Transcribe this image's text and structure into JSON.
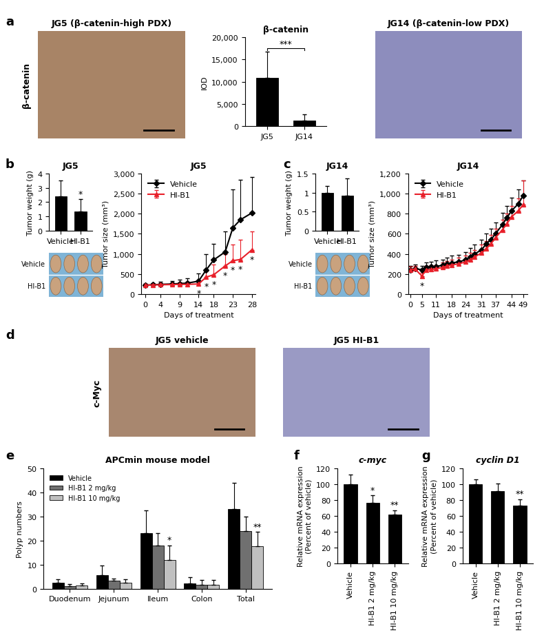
{
  "panels": [
    "a",
    "b",
    "c",
    "d",
    "e",
    "f",
    "g"
  ],
  "images": [
    {
      "title": "JG5 (β-catenin-high PDX)",
      "side_label": "β-catenin",
      "color": "#a88466"
    },
    {
      "title": "JG14 (β-catenin-low PDX)",
      "color": "#8d8dbd"
    },
    {
      "row_labels": [
        "Vehicle",
        "HI-B1"
      ],
      "color": "#7fb4d6"
    },
    {
      "row_labels": [
        "Vehicle",
        "HI-B1"
      ],
      "color": "#7fb4d6"
    },
    {
      "title": "JG5 vehicle",
      "side_label": "c-Myc",
      "color": "#a8876f"
    },
    {
      "title": "JG5 HI-B1",
      "color": "#9a9ac4"
    }
  ],
  "chart_data": [
    {
      "type": "bar",
      "title": "β-catenin",
      "y_label": "IOD",
      "categories": [
        "JG5",
        "JG14"
      ],
      "values": [
        10800,
        1200
      ],
      "errors": [
        6000,
        1500
      ],
      "color": "#000000",
      "annotations": [
        "***"
      ],
      "ylim": [
        0,
        20000
      ],
      "yticks": [
        0,
        {
          "value": 5000,
          "label": "5,000"
        },
        {
          "value": 10000,
          "label": "10,000"
        },
        {
          "value": 15000,
          "label": "15,000"
        },
        {
          "value": 20000,
          "label": "20,000"
        }
      ]
    },
    {
      "type": "bar",
      "title": "JG5",
      "y_label": "Tumor weight (g)",
      "categories": [
        "Vehicle",
        "HI-B1"
      ],
      "values": [
        2.4,
        1.35
      ],
      "errors": [
        1.1,
        0.85
      ],
      "significance": [
        null,
        "*"
      ],
      "color": "#000000",
      "ylim": [
        0,
        4
      ],
      "yticks": [
        0,
        1,
        2,
        3,
        4
      ]
    },
    {
      "type": "line",
      "title": "JG5",
      "x_label": "Days of treatment",
      "y_label": "Tumor size (mm³)",
      "x": [
        0,
        2,
        4,
        7,
        9,
        11,
        14,
        16,
        18,
        21,
        23,
        25,
        28
      ],
      "series": [
        {
          "name": "Vehicle",
          "color": "#000000",
          "marker": "diamond",
          "values": [
            220,
            230,
            240,
            250,
            260,
            270,
            320,
            600,
            850,
            1050,
            1650,
            1850,
            2020
          ],
          "errors": [
            30,
            40,
            60,
            80,
            100,
            120,
            200,
            400,
            400,
            500,
            950,
            1000,
            900
          ]
        },
        {
          "name": "HI-B1",
          "color": "#e8202a",
          "marker": "triangle",
          "values": [
            220,
            225,
            230,
            235,
            240,
            240,
            250,
            420,
            480,
            700,
            830,
            860,
            1100
          ],
          "errors": [
            30,
            30,
            40,
            40,
            50,
            60,
            80,
            150,
            250,
            300,
            400,
            500,
            450
          ],
          "significance": [
            null,
            null,
            null,
            null,
            null,
            null,
            "*",
            "*",
            "*",
            "*",
            "*",
            "*",
            "*"
          ]
        }
      ],
      "legend": "upper left",
      "xlim": [
        -1,
        29
      ],
      "xticks": [
        0,
        4,
        9,
        14,
        18,
        23,
        28
      ],
      "ylim": [
        0,
        3000
      ],
      "yticks": [
        0,
        500,
        {
          "value": 1000,
          "label": "1,000"
        },
        {
          "value": 1500,
          "label": "1,500"
        },
        {
          "value": 2000,
          "label": "2,000"
        },
        {
          "value": 2500,
          "label": "2,500"
        },
        {
          "value": 3000,
          "label": "3,000"
        }
      ]
    },
    {
      "type": "bar",
      "title": "JG14",
      "y_label": "Tumor weight (g)",
      "categories": [
        "Vehicle",
        "HI-B1"
      ],
      "values": [
        1.0,
        0.92
      ],
      "errors": [
        0.18,
        0.45
      ],
      "color": "#000000",
      "ylim": [
        0,
        1.5
      ],
      "yticks": [
        0,
        0.5,
        1,
        1.5
      ]
    },
    {
      "type": "line",
      "title": "JG14",
      "x_label": "Days of treatment",
      "y_label": "Tumor size (mm³)",
      "x": [
        0,
        2,
        5,
        7,
        9,
        11,
        14,
        16,
        18,
        21,
        24,
        26,
        28,
        31,
        33,
        35,
        37,
        40,
        42,
        44,
        47,
        49
      ],
      "series": [
        {
          "name": "Vehicle",
          "color": "#000000",
          "marker": "diamond",
          "values": [
            240,
            255,
            240,
            265,
            270,
            275,
            285,
            300,
            310,
            320,
            340,
            370,
            400,
            440,
            500,
            540,
            600,
            690,
            760,
            830,
            900,
            980
          ],
          "errors": [
            40,
            40,
            40,
            50,
            50,
            60,
            60,
            60,
            70,
            70,
            80,
            90,
            90,
            100,
            100,
            110,
            110,
            120,
            120,
            130,
            140,
            150
          ]
        },
        {
          "name": "HI-B1",
          "color": "#e8202a",
          "marker": "triangle",
          "values": [
            240,
            250,
            180,
            240,
            245,
            250,
            265,
            280,
            290,
            300,
            320,
            340,
            370,
            410,
            450,
            500,
            560,
            640,
            700,
            770,
            830,
            890
          ],
          "errors": [
            30,
            30,
            30,
            40,
            40,
            40,
            50,
            50,
            50,
            60,
            60,
            70,
            70,
            80,
            80,
            90,
            90,
            100,
            100,
            110,
            120,
            240
          ],
          "significance": [
            null,
            null,
            "*",
            null,
            null,
            null,
            null,
            null,
            null,
            null,
            null,
            null,
            null,
            null,
            null,
            null,
            null,
            null,
            null,
            null,
            null,
            null
          ]
        }
      ],
      "legend": "upper left",
      "xlim": [
        -1,
        51
      ],
      "xticks": [
        0,
        5,
        11,
        18,
        24,
        31,
        37,
        44,
        49
      ],
      "ylim": [
        0,
        1200
      ],
      "yticks": [
        0,
        200,
        400,
        600,
        800,
        {
          "value": 1000,
          "label": "1,000"
        },
        {
          "value": 1200,
          "label": "1,200"
        }
      ]
    },
    {
      "type": "bar",
      "title": "APCmin mouse model",
      "y_label": "Polyp numbers",
      "categories": [
        "Duodenum",
        "Jejunum",
        "Ileum",
        "Colon",
        "Total"
      ],
      "series": [
        {
          "name": "Vehicle",
          "color": "#000000",
          "values": [
            2.5,
            5.5,
            23,
            2.2,
            33
          ],
          "errors": [
            1.5,
            4,
            9.5,
            2.5,
            11
          ]
        },
        {
          "name": "HI-B1 2 mg/kg",
          "color": "#707070",
          "values": [
            1,
            3.2,
            18,
            1.5,
            24
          ],
          "errors": [
            1,
            1,
            5,
            2,
            6
          ]
        },
        {
          "name": "HI-B1 10 mg/kg",
          "color": "#c0c0c0",
          "values": [
            1.3,
            2.5,
            12,
            1.5,
            17.5
          ],
          "errors": [
            1,
            1.5,
            6,
            2,
            6
          ],
          "significance": [
            null,
            null,
            "*",
            null,
            "**"
          ]
        }
      ],
      "legend": "upper left",
      "ylim": [
        0,
        50
      ],
      "yticks": [
        0,
        10,
        20,
        30,
        40,
        50
      ]
    },
    {
      "type": "bar",
      "title": "c-myc",
      "y_label": "Relative mRNA expression\n(Percent of vehicle)",
      "categories": [
        "Vehicle",
        "HI-B1 2 mg/kg",
        "HI-B1 10 mg/kg"
      ],
      "values": [
        100,
        76,
        62
      ],
      "errors": [
        12,
        10,
        5
      ],
      "significance": [
        null,
        "*",
        "**"
      ],
      "color": "#000000",
      "ylim": [
        0,
        120
      ],
      "yticks": [
        0,
        20,
        40,
        60,
        80,
        100,
        120
      ]
    },
    {
      "type": "bar",
      "title": "cyclin D1",
      "y_label": "Relative mRNA expression\n(Percent of vehicle)",
      "categories": [
        "Vehicle",
        "HI-B1 2 mg/kg",
        "HI-B1 10 mg/kg"
      ],
      "values": [
        100,
        91,
        73
      ],
      "errors": [
        6,
        10,
        8
      ],
      "significance": [
        null,
        null,
        "**"
      ],
      "color": "#000000",
      "ylim": [
        0,
        120
      ],
      "yticks": [
        0,
        20,
        40,
        60,
        80,
        100,
        120
      ]
    }
  ]
}
